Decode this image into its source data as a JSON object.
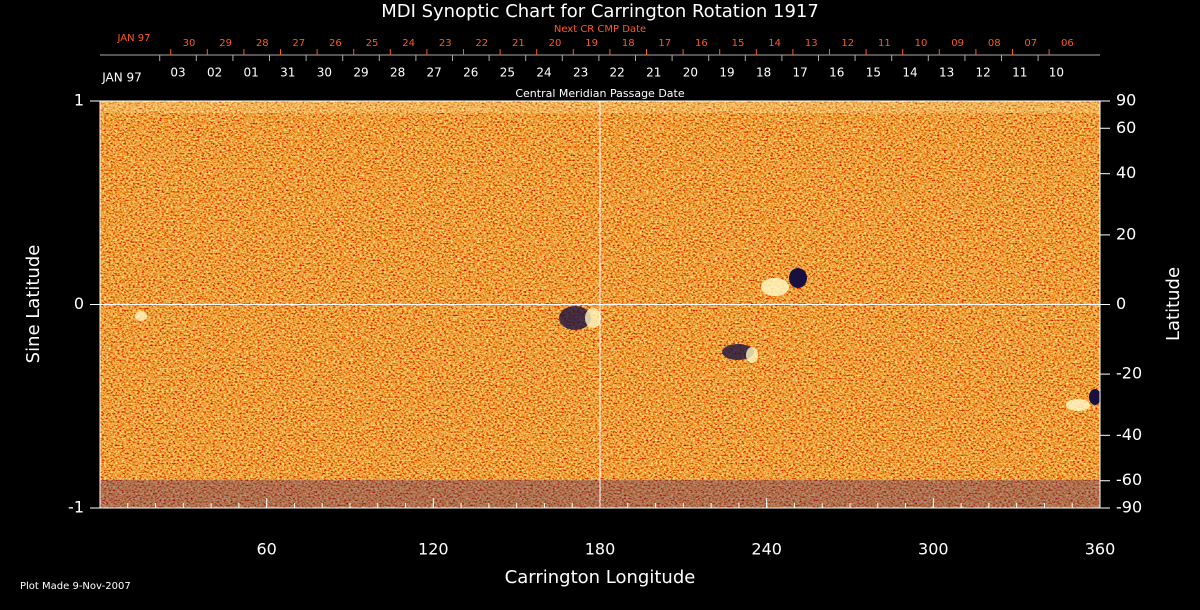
{
  "chart_data": {
    "type": "synoptic",
    "title": "MDI Synoptic Chart for Carrington Rotation 1917",
    "xlabel": "Carrington Longitude",
    "ylabel": "Sine Latitude",
    "y2label": "Latitude",
    "xlim": [
      0,
      360
    ],
    "xticks": [
      60,
      120,
      180,
      240,
      300,
      360
    ],
    "ylim": [
      -1,
      1
    ],
    "yticks": [
      -1,
      0,
      1
    ],
    "y2lim": [
      -90,
      90
    ],
    "y2ticks": [
      90,
      60,
      40,
      20,
      0,
      -20,
      -40,
      -60,
      -90
    ],
    "y2scale": "sine",
    "center_lines": true,
    "cmp_axis": {
      "label": "Central Meridian Passage Date",
      "start_label": "JAN 97",
      "dates": [
        "03",
        "02",
        "01",
        "31",
        "30",
        "29",
        "28",
        "27",
        "26",
        "25",
        "24",
        "23",
        "22",
        "21",
        "20",
        "19",
        "18",
        "17",
        "16",
        "15",
        "14",
        "13",
        "12",
        "11",
        "10"
      ]
    },
    "next_axis": {
      "label": "Next CR CMP Date",
      "start_label": "JAN 97",
      "dates": [
        "30",
        "29",
        "28",
        "27",
        "26",
        "25",
        "24",
        "23",
        "22",
        "21",
        "20",
        "19",
        "18",
        "17",
        "16",
        "15",
        "14",
        "13",
        "12",
        "11",
        "10",
        "09",
        "08",
        "07",
        "06"
      ]
    },
    "footer": "Plot Made  9-Nov-2007"
  }
}
